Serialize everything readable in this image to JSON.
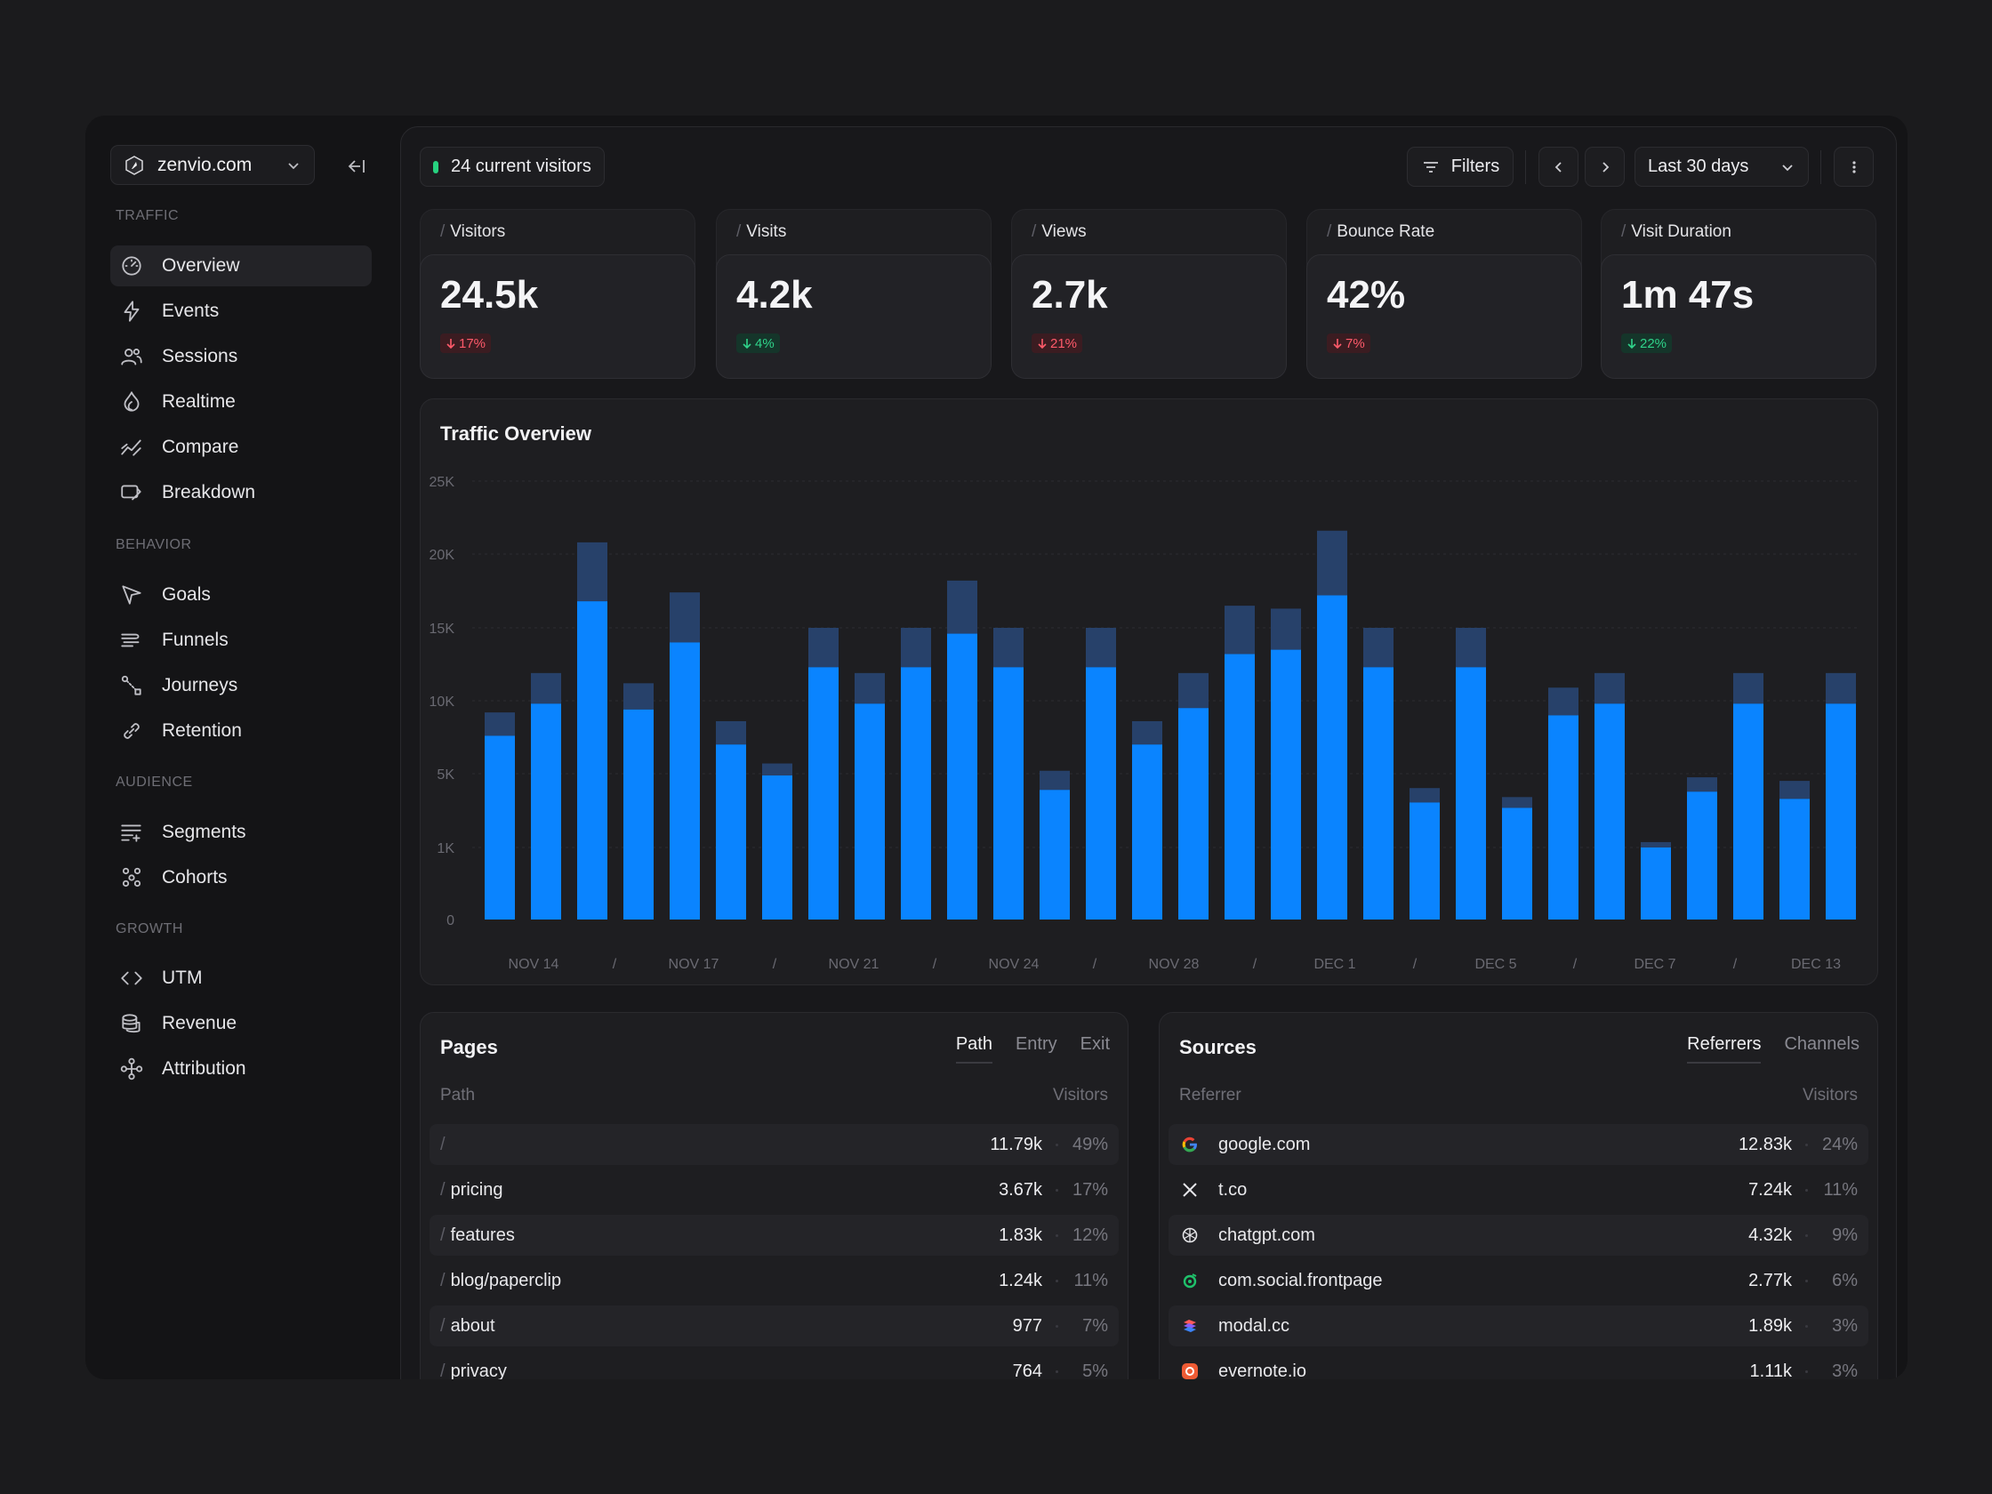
{
  "sidebar": {
    "site": "zenvio.com",
    "sections": [
      {
        "title": "TRAFFIC",
        "items": [
          {
            "label": "Overview",
            "icon": "gauge-icon",
            "active": true
          },
          {
            "label": "Events",
            "icon": "bolt-icon"
          },
          {
            "label": "Sessions",
            "icon": "users-icon"
          },
          {
            "label": "Realtime",
            "icon": "flame-icon"
          },
          {
            "label": "Compare",
            "icon": "trend-compare-icon"
          },
          {
            "label": "Breakdown",
            "icon": "breakdown-icon"
          }
        ]
      },
      {
        "title": "BEHAVIOR",
        "items": [
          {
            "label": "Goals",
            "icon": "cursor-icon"
          },
          {
            "label": "Funnels",
            "icon": "funnel-lines-icon"
          },
          {
            "label": "Journeys",
            "icon": "journey-icon"
          },
          {
            "label": "Retention",
            "icon": "link-icon"
          }
        ]
      },
      {
        "title": "AUDIENCE",
        "items": [
          {
            "label": "Segments",
            "icon": "list-filter-icon"
          },
          {
            "label": "Cohorts",
            "icon": "cohorts-icon"
          }
        ]
      },
      {
        "title": "GROWTH",
        "items": [
          {
            "label": "UTM",
            "icon": "code-icon"
          },
          {
            "label": "Revenue",
            "icon": "coins-icon"
          },
          {
            "label": "Attribution",
            "icon": "attribution-icon"
          }
        ]
      }
    ]
  },
  "header": {
    "current_visitors": "24 current visitors",
    "filters_label": "Filters",
    "range_label": "Last 30 days"
  },
  "stats": [
    {
      "label": "Visitors",
      "value": "24.5k",
      "delta": "17%",
      "dir": "down",
      "tone": "red"
    },
    {
      "label": "Visits",
      "value": "4.2k",
      "delta": "4%",
      "dir": "down",
      "tone": "green"
    },
    {
      "label": "Views",
      "value": "2.7k",
      "delta": "21%",
      "dir": "down",
      "tone": "red"
    },
    {
      "label": "Bounce Rate",
      "value": "42%",
      "delta": "7%",
      "dir": "down",
      "tone": "red"
    },
    {
      "label": "Visit Duration",
      "value": "1m 47s",
      "delta": "22%",
      "dir": "down",
      "tone": "green"
    }
  ],
  "chart_data": {
    "type": "bar",
    "title": "Traffic Overview",
    "y_ticks": [
      "25K",
      "20K",
      "15K",
      "10K",
      "5K",
      "1K",
      "0"
    ],
    "x_ticks": [
      "NOV 14",
      "/",
      "NOV 17",
      "/",
      "NOV 21",
      "/",
      "NOV 24",
      "/",
      "NOV 28",
      "/",
      "DEC 1",
      "/",
      "DEC 5",
      "/",
      "DEC 7",
      "/",
      "DEC 13"
    ],
    "series": [
      {
        "values": [
          7.6,
          9.8,
          16.8,
          9.4,
          14.0,
          7.0,
          4.9,
          12.3,
          9.8,
          12.3,
          14.6,
          12.3,
          4.1,
          12.3,
          7.0,
          9.5,
          13.2,
          13.5,
          17.2,
          12.3,
          3.4,
          12.3,
          3.1,
          9.0,
          9.8,
          0.9,
          4.0,
          9.8,
          3.6,
          9.8
        ]
      },
      {
        "values": [
          1.6,
          2.1,
          4.0,
          1.8,
          3.4,
          1.6,
          0.8,
          2.7,
          2.1,
          2.7,
          3.6,
          2.7,
          1.1,
          2.7,
          1.6,
          2.4,
          3.3,
          2.8,
          4.4,
          2.7,
          0.8,
          2.7,
          0.6,
          1.9,
          2.1,
          0.3,
          0.8,
          2.1,
          1.0,
          2.1
        ]
      }
    ],
    "colors": {
      "primary": "#0a84ff",
      "secondary": "#27416a"
    }
  },
  "pages": {
    "title": "Pages",
    "tabs": [
      "Path",
      "Entry",
      "Exit"
    ],
    "col_left": "Path",
    "col_right": "Visitors",
    "rows": [
      {
        "slash": "/",
        "path": "",
        "visitors": "11.79k",
        "pct": "49%"
      },
      {
        "slash": "/",
        "path": "pricing",
        "visitors": "3.67k",
        "pct": "17%"
      },
      {
        "slash": "/",
        "path": "features",
        "visitors": "1.83k",
        "pct": "12%"
      },
      {
        "slash": "/",
        "path": "blog/paperclip",
        "visitors": "1.24k",
        "pct": "11%"
      },
      {
        "slash": "/",
        "path": "about",
        "visitors": "977",
        "pct": "7%"
      },
      {
        "slash": "/",
        "path": "privacy",
        "visitors": "764",
        "pct": "5%"
      }
    ]
  },
  "sources": {
    "title": "Sources",
    "tabs": [
      "Referrers",
      "Channels"
    ],
    "col_left": "Referrer",
    "col_right": "Visitors",
    "rows": [
      {
        "icon": "google-icon",
        "name": "google.com",
        "visitors": "12.83k",
        "pct": "24%"
      },
      {
        "icon": "x-icon",
        "name": "t.co",
        "visitors": "7.24k",
        "pct": "11%"
      },
      {
        "icon": "chatgpt-icon",
        "name": "chatgpt.com",
        "visitors": "4.32k",
        "pct": "9%"
      },
      {
        "icon": "frontpage-icon",
        "name": "com.social.frontpage",
        "visitors": "2.77k",
        "pct": "6%"
      },
      {
        "icon": "modal-icon",
        "name": "modal.cc",
        "visitors": "1.89k",
        "pct": "3%"
      },
      {
        "icon": "evernote-icon",
        "name": "evernote.io",
        "visitors": "1.11k",
        "pct": "3%"
      }
    ]
  }
}
